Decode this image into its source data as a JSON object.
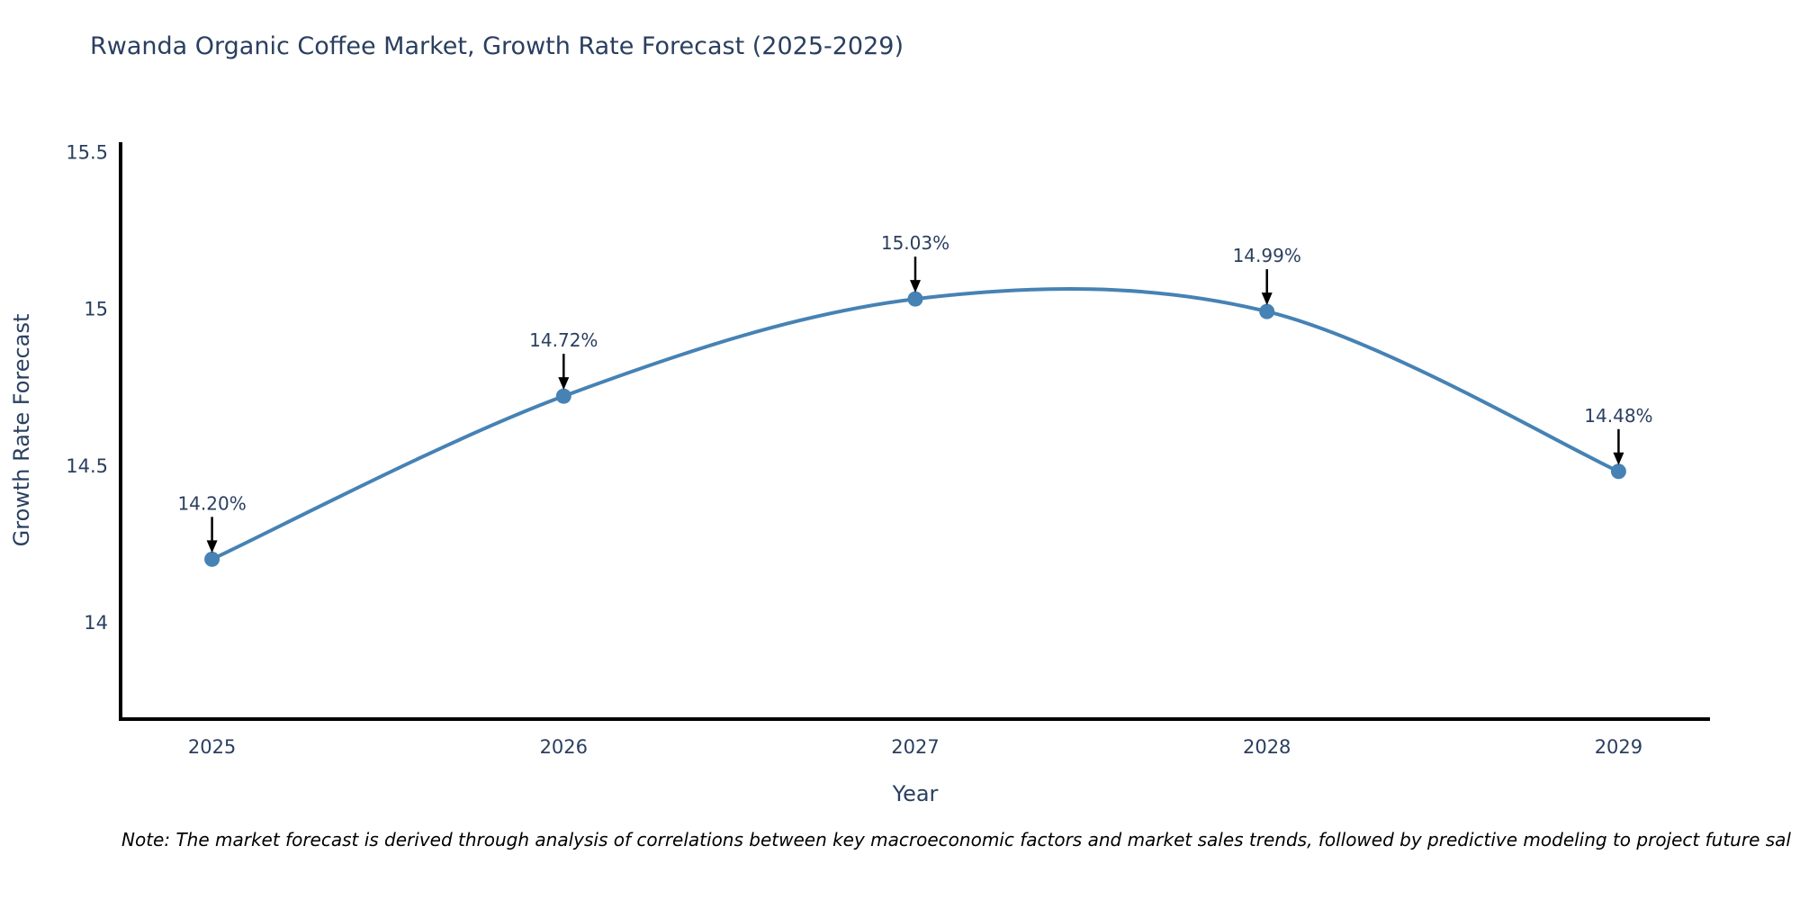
{
  "title": "Rwanda Organic Coffee Market, Growth Rate Forecast (2025-2029)",
  "note": "Note: The market forecast is derived through analysis of correlations between key macroeconomic factors and market sales trends, followed by predictive modeling to project future sal",
  "chart_data": {
    "type": "line",
    "title": "Rwanda Organic Coffee Market, Growth Rate Forecast (2025-2029)",
    "xlabel": "Year",
    "ylabel": "Growth Rate Forecast",
    "x": [
      2025,
      2026,
      2027,
      2028,
      2029
    ],
    "values": [
      14.2,
      14.72,
      15.03,
      14.99,
      14.48
    ],
    "labels": [
      "14.20%",
      "14.72%",
      "15.03%",
      "14.99%",
      "14.48%"
    ],
    "x_tick_labels": [
      "2025",
      "2026",
      "2027",
      "2028",
      "2029"
    ],
    "y_ticks": [
      14,
      14.5,
      15,
      15.5
    ],
    "y_tick_labels": [
      "14",
      "14.5",
      "15",
      "15.5"
    ],
    "xlim": [
      2024.74,
      2029.26
    ],
    "ylim": [
      13.69,
      15.53
    ],
    "line_shape": "spline",
    "grid": false,
    "legend": "none",
    "colors": {
      "line": "#4682b4",
      "marker": "#4682b4",
      "axis": "#000000",
      "text": "#2a3f5f",
      "arrow": "#000000"
    }
  }
}
